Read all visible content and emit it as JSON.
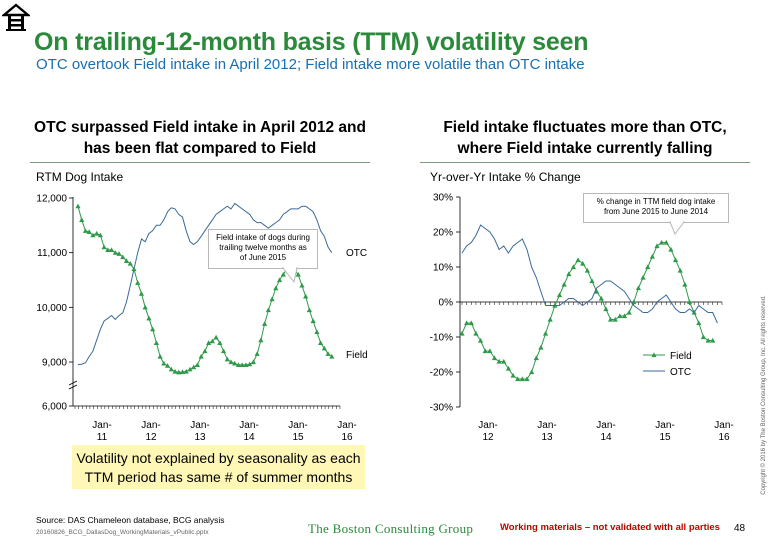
{
  "header": {
    "title": "On trailing-12-month basis (TTM) volatility seen",
    "subtitle": "OTC overtook Field intake in April 2012; Field intake more volatile than OTC intake",
    "logo_icon": "house-icon"
  },
  "charts": {
    "left": {
      "heading": "OTC surpassed Field intake in April 2012 and has been flat compared to Field",
      "ylabel": "RTM Dog Intake",
      "callout": "Field intake of dogs during trailing twelve months as of June 2015",
      "note": "Volatility not explained by seasonality as each TTM period has same # of summer months"
    },
    "right": {
      "heading": "Field intake fluctuates more than OTC, where Field intake currently falling",
      "ylabel": "Yr-over-Yr Intake % Change",
      "callout": "% change in TTM field dog intake from June 2015 to June 2014"
    }
  },
  "chart_data": [
    {
      "type": "line",
      "ylabel": "RTM Dog Intake",
      "ylim": [
        6000,
        12000
      ],
      "yticks": [
        "12,000",
        "11,000",
        "10,000",
        "9,000",
        "6,000"
      ],
      "xticks": [
        "Jan-\n11",
        "Jan-\n12",
        "Jan-\n13",
        "Jan-\n14",
        "Jan-\n15",
        "Jan-\n16"
      ],
      "x_start": "2011-01",
      "legend": "labels-at-line-ends",
      "series": [
        {
          "name": "OTC",
          "color": "#3a6a9a",
          "marker": "none",
          "values": [
            8820,
            8850,
            8950,
            9100,
            9200,
            9400,
            9600,
            9750,
            9800,
            9850,
            9780,
            9850,
            9900,
            10100,
            10400,
            10700,
            11000,
            11250,
            11200,
            11350,
            11400,
            11500,
            11500,
            11600,
            11750,
            11820,
            11800,
            11700,
            11650,
            11400,
            11200,
            11150,
            11200,
            11300,
            11400,
            11500,
            11600,
            11700,
            11750,
            11800,
            11850,
            11800,
            11900,
            11850,
            11800,
            11750,
            11700,
            11600,
            11550,
            11550,
            11500,
            11450,
            11500,
            11550,
            11600,
            11700,
            11750,
            11800,
            11800,
            11800,
            11850,
            11850,
            11800,
            11750,
            11600,
            11400,
            11300,
            11100,
            11000
          ]
        },
        {
          "name": "Field",
          "color": "#2f9a4a",
          "marker": "triangle",
          "values": [
            11850,
            11600,
            11400,
            11380,
            11320,
            11350,
            11320,
            11100,
            11050,
            11050,
            11000,
            10980,
            10920,
            10850,
            10800,
            10700,
            10450,
            10250,
            10000,
            9800,
            9600,
            9350,
            9100,
            8900,
            8750,
            8500,
            8350,
            8300,
            8320,
            8350,
            8500,
            8650,
            8800,
            9100,
            9200,
            9350,
            9380,
            9450,
            9350,
            9200,
            9050,
            9000,
            8900,
            8800,
            8800,
            8800,
            8850,
            9000,
            9150,
            9400,
            9700,
            9950,
            10150,
            10350,
            10500,
            10600,
            10700,
            10750,
            10680,
            10600,
            10400,
            10200,
            9950,
            9750,
            9550,
            9350,
            9250,
            9150,
            9100
          ]
        }
      ]
    },
    {
      "type": "line",
      "ylabel": "Yr-over-Yr Intake % Change",
      "ylim": [
        -30,
        30
      ],
      "yticks": [
        "30%",
        "20%",
        "10%",
        "0%",
        "-10%",
        "-20%",
        "-30%"
      ],
      "xticks": [
        "Jan-\n12",
        "Jan-\n13",
        "Jan-\n14",
        "Jan-\n15",
        "Jan-\n16"
      ],
      "x_start": "2011-12",
      "legend": "right-middle",
      "series": [
        {
          "name": "Field",
          "color": "#2f9a4a",
          "marker": "triangle",
          "values": [
            -9,
            -6,
            -6,
            -9,
            -11,
            -14,
            -14,
            -16,
            -17,
            -17,
            -19,
            -21,
            -22,
            -22,
            -22,
            -20,
            -16,
            -13,
            -9,
            -5,
            -1,
            2,
            5,
            8,
            10,
            12,
            11,
            9,
            6,
            3,
            1,
            -2,
            -5,
            -5,
            -4,
            -4,
            -3,
            0,
            4,
            7,
            10,
            13,
            16,
            17,
            17,
            15,
            12,
            9,
            5,
            0,
            -3,
            -6,
            -10,
            -11,
            -11
          ]
        },
        {
          "name": "OTC",
          "color": "#3a6a9a",
          "marker": "none",
          "values": [
            14,
            16,
            17,
            19,
            22,
            21,
            20,
            18,
            15,
            16,
            14,
            16,
            17,
            18,
            15,
            10,
            7,
            3,
            -1,
            -1,
            -1,
            -1,
            0,
            1,
            1,
            0,
            -1,
            0,
            1,
            4,
            5,
            6,
            6,
            5,
            4,
            3,
            1,
            -1,
            -2,
            -3,
            -3,
            -2,
            0,
            1,
            2,
            0,
            -2,
            -3,
            -3,
            -2,
            -3,
            -1,
            -2,
            -3,
            -3,
            -6
          ]
        }
      ]
    }
  ],
  "legend_labels": {
    "field": "Field",
    "otc": "OTC"
  },
  "footer": {
    "source": "Source: DAS Chameleon database, BCG analysis",
    "file": "20160826_BCG_DallasDog_WorkingMaterials_vPublic.pptx",
    "company": "The Boston Consulting Group",
    "warning": "Working materials – not validated with all parties",
    "page": "48",
    "copyright": "Copyright © 2016 by The Boston Consulting Group, Inc. All rights reserved."
  },
  "colors": {
    "title_green": "#2a8a3a",
    "subtitle_blue": "#1a6fb0",
    "field_green": "#2f9a4a",
    "otc_blue": "#3a6a9a",
    "highlight_yellow": "#fff7b5"
  }
}
